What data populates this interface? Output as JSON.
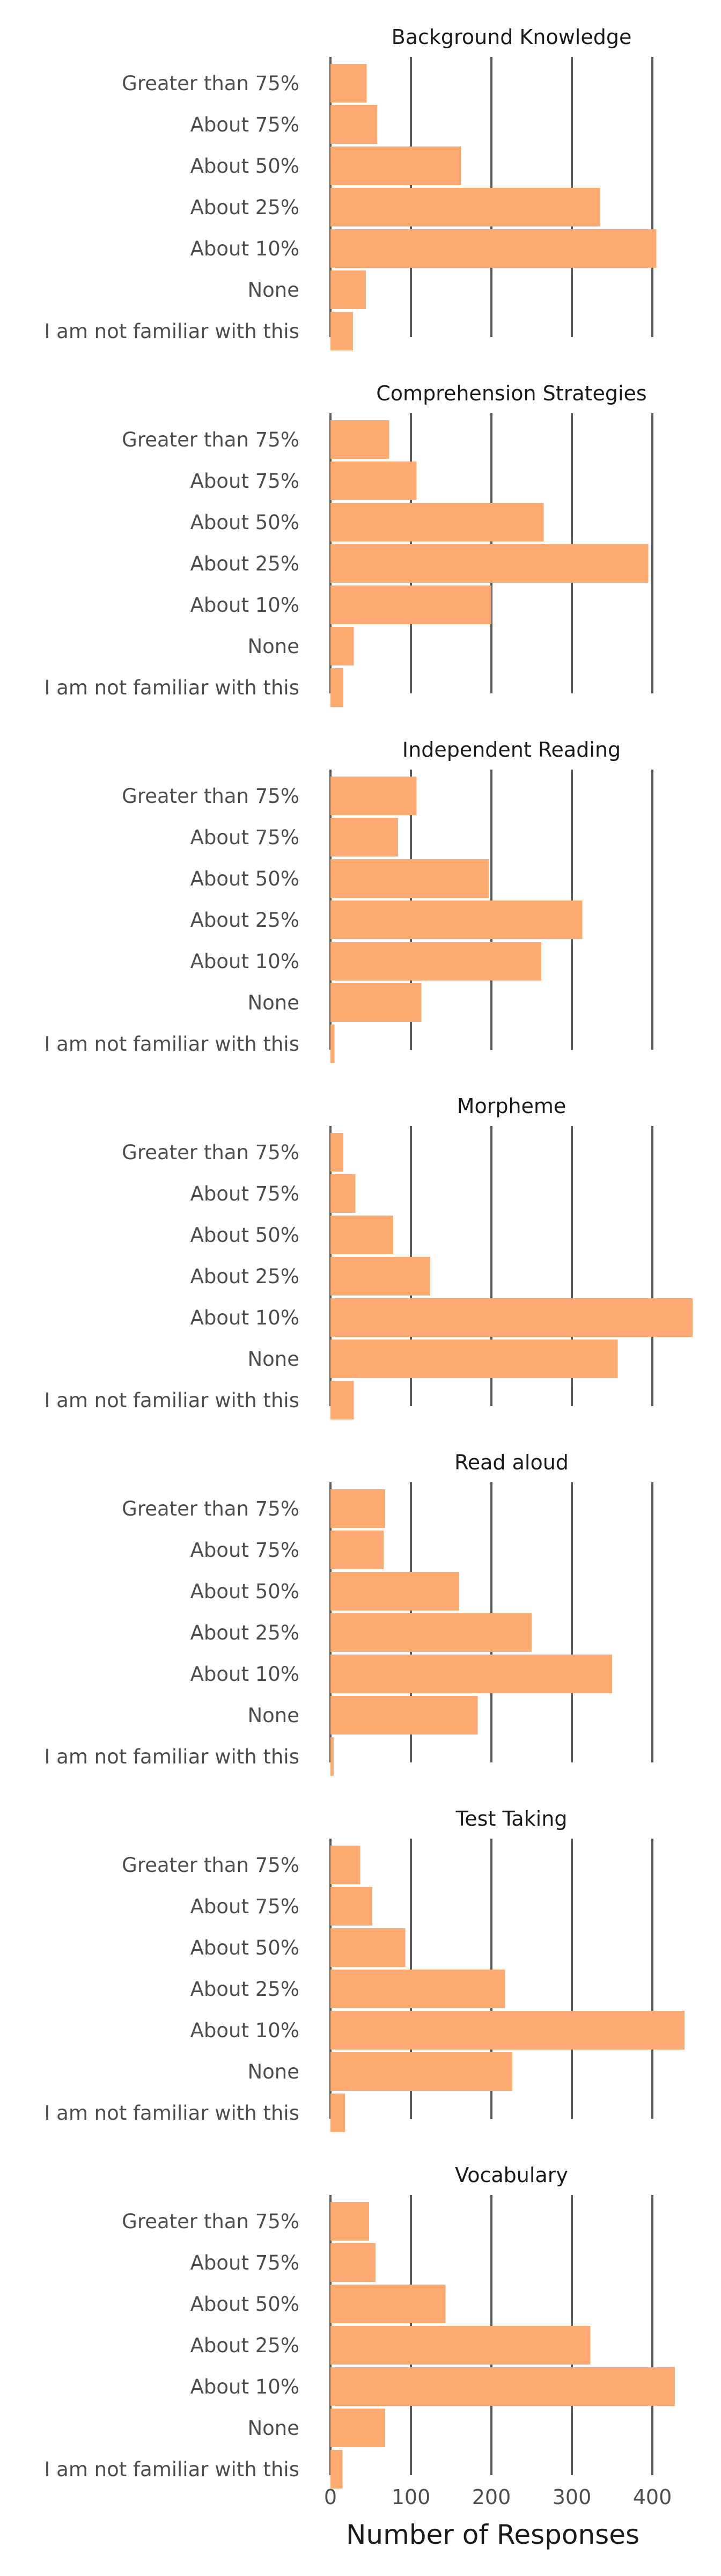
{
  "chart_data": {
    "type": "bar",
    "orientation": "horizontal",
    "bar_color": "#fdaa72",
    "categories": [
      "Greater than 75%",
      "About 75%",
      "About 50%",
      "About 25%",
      "About 10%",
      "None",
      "I am not familiar with this"
    ],
    "xlabel": "Number of Responses",
    "xticks": [
      0,
      100,
      200,
      300,
      400
    ],
    "xlim": [
      0,
      450
    ],
    "grid": "vertical",
    "panels": [
      {
        "title": "Background Knowledge",
        "values": [
          45,
          58,
          162,
          335,
          405,
          44,
          28
        ]
      },
      {
        "title": "Comprehension Strategies",
        "values": [
          73,
          107,
          265,
          395,
          200,
          29,
          16
        ]
      },
      {
        "title": "Independent Reading",
        "values": [
          107,
          84,
          197,
          313,
          262,
          113,
          5
        ]
      },
      {
        "title": "Morpheme",
        "values": [
          16,
          31,
          78,
          124,
          450,
          357,
          29
        ]
      },
      {
        "title": "Read aloud",
        "values": [
          68,
          66,
          160,
          250,
          350,
          183,
          4
        ]
      },
      {
        "title": "Test Taking",
        "values": [
          37,
          52,
          93,
          217,
          440,
          226,
          18
        ]
      },
      {
        "title": "Vocabulary",
        "values": [
          48,
          56,
          143,
          323,
          428,
          68,
          15
        ]
      }
    ]
  }
}
